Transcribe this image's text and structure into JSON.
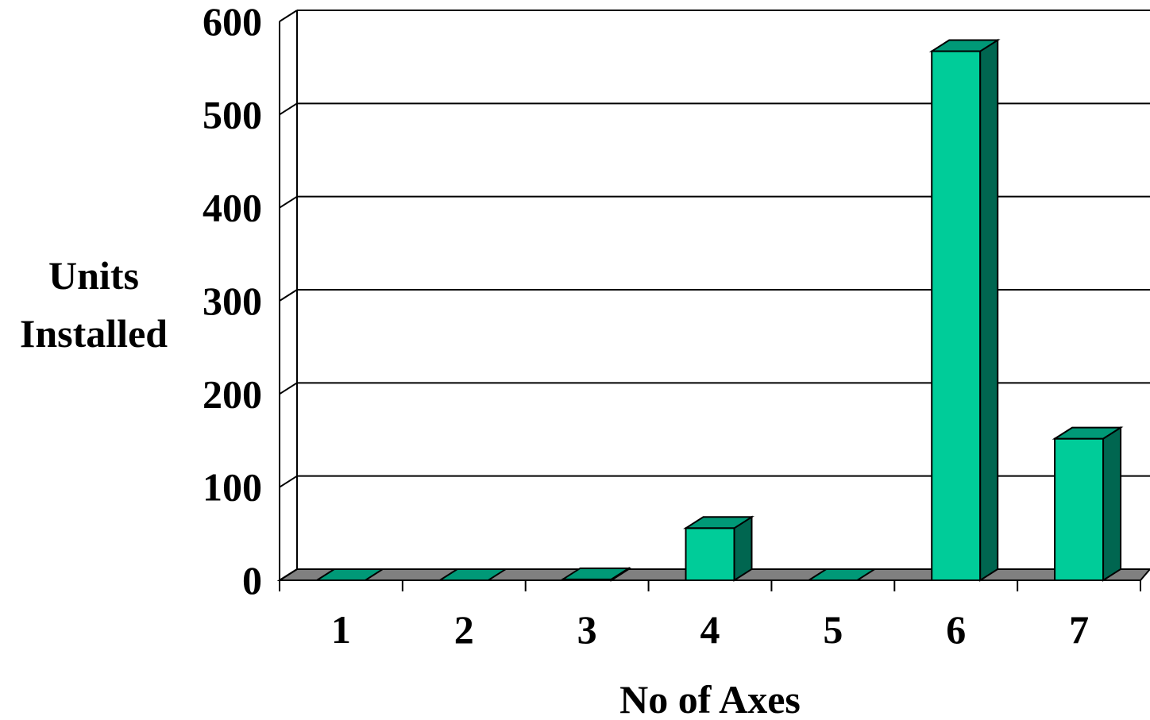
{
  "chart_data": {
    "type": "bar",
    "categories": [
      "1",
      "2",
      "3",
      "4",
      "5",
      "6",
      "7"
    ],
    "values": [
      0,
      0,
      1,
      56,
      0,
      568,
      152
    ],
    "ylim": [
      0,
      600
    ],
    "yticks": [
      "0",
      "100",
      "200",
      "300",
      "400",
      "500",
      "600"
    ],
    "ylabel_lines": [
      "Units",
      "Installed"
    ],
    "xlabel": "No of Axes",
    "grid": true,
    "legend": "none",
    "colors": {
      "bar_front": "#00cc99",
      "bar_top": "#009977",
      "bar_side": "#006650",
      "floor": "#808080",
      "grid": "#000000"
    }
  }
}
